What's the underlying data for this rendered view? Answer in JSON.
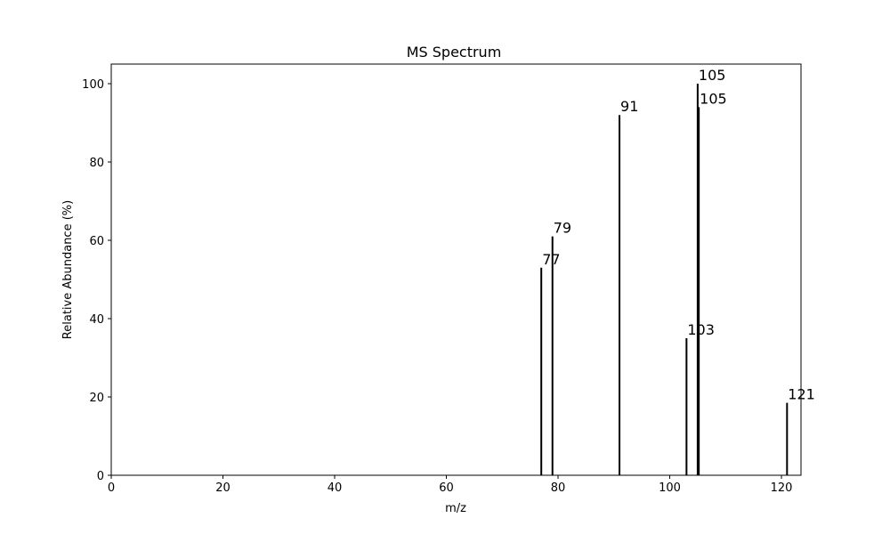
{
  "chart_data": {
    "type": "bar",
    "title": "MS Spectrum",
    "xlabel": "m/z",
    "ylabel": "Relative Abundance (%)",
    "xlim": [
      0,
      123.5
    ],
    "ylim": [
      0,
      105
    ],
    "xticks": [
      0,
      20,
      40,
      60,
      80,
      100,
      120
    ],
    "yticks": [
      0,
      20,
      40,
      60,
      80,
      100
    ],
    "grid": false,
    "bar_color": "#000000",
    "peaks": [
      {
        "x": 77,
        "y": 53,
        "label": "77"
      },
      {
        "x": 79,
        "y": 61,
        "label": "79"
      },
      {
        "x": 91,
        "y": 92,
        "label": "91"
      },
      {
        "x": 103,
        "y": 35,
        "label": "103"
      },
      {
        "x": 105,
        "y": 100,
        "label": "105"
      },
      {
        "x": 105.2,
        "y": 94,
        "label": "105"
      },
      {
        "x": 121,
        "y": 18.5,
        "label": "121"
      }
    ]
  }
}
